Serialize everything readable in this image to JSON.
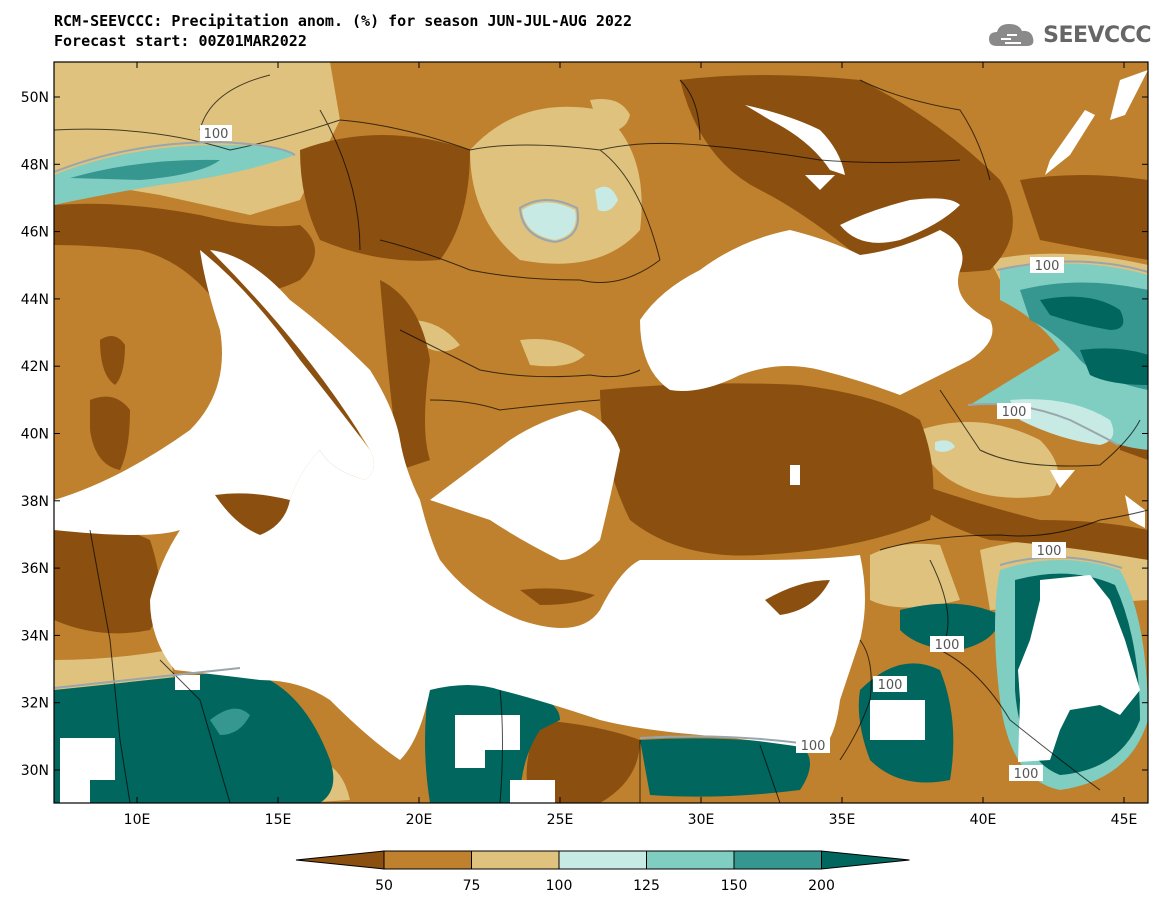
{
  "header": {
    "title_line1": "RCM-SEEVCCC: Precipitation anom. (%) for season JUN-JUL-AUG 2022",
    "title_line2": "Forecast start: 00Z01MAR2022",
    "logo_text": "SEEVCCC"
  },
  "map": {
    "lat_labels": [
      "50N",
      "48N",
      "46N",
      "44N",
      "42N",
      "40N",
      "38N",
      "36N",
      "34N",
      "32N",
      "30N"
    ],
    "lon_labels": [
      "10E",
      "15E",
      "20E",
      "25E",
      "30E",
      "35E",
      "40E",
      "45E"
    ],
    "contour_labels": [
      "100",
      "100",
      "100",
      "100",
      "100",
      "100",
      "100",
      "100"
    ],
    "colors": {
      "below_50": "#8b5010",
      "50_75": "#bf812d",
      "75_100": "#dfc27d",
      "100_125": "#c7eae5",
      "125_150": "#80cdc1",
      "150_200": "#35978f",
      "above_200": "#01665e",
      "sea": "#ffffff"
    }
  },
  "colorbar": {
    "tick_labels": [
      "50",
      "75",
      "100",
      "125",
      "150",
      "200"
    ],
    "colors": [
      "#8b5010",
      "#bf812d",
      "#dfc27d",
      "#c7eae5",
      "#80cdc1",
      "#35978f",
      "#01665e"
    ]
  }
}
